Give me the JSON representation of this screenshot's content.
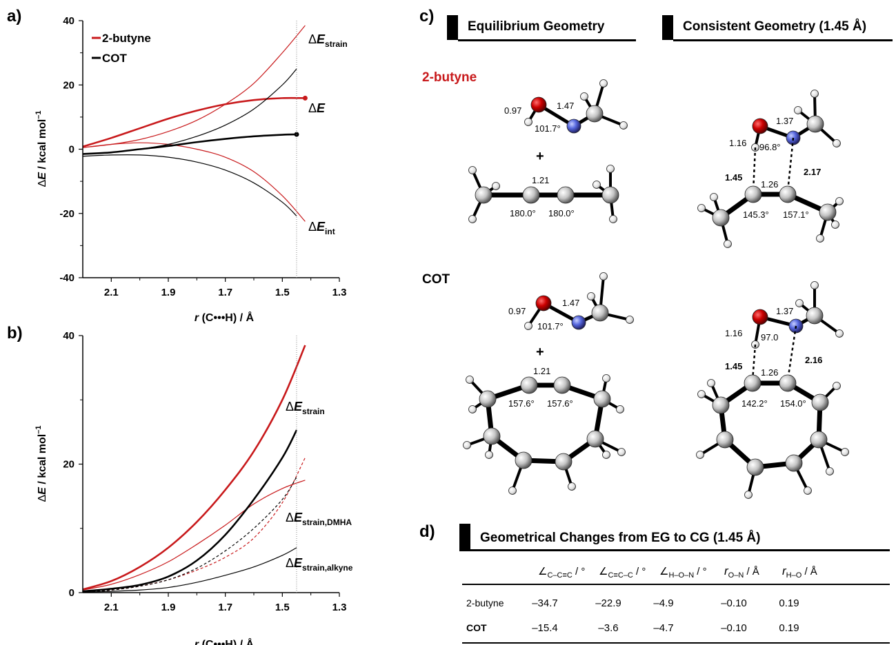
{
  "panels": {
    "a": "a)",
    "b": "b)",
    "c": "c)",
    "d": "d)"
  },
  "colors": {
    "butyne": "#c8191b",
    "cot": "#000000",
    "oxygen": "#cc0000",
    "nitrogen": "#5566dd",
    "carbon": "#b5b5b5"
  },
  "chart_data": [
    {
      "type": "line",
      "xlabel_italic": "r",
      "xlabel_rest": " (C•••H) / Å",
      "ylabel_italic": "E",
      "ylabel_prefix": "Δ",
      "ylabel_rest": " / kcal mol",
      "ylabel_sup": "–1",
      "xlim": [
        2.2,
        1.3
      ],
      "ylim": [
        -40,
        40
      ],
      "xticks": [
        "2.1",
        "1.9",
        "1.7",
        "1.5",
        "1.3"
      ],
      "xtick_values": [
        2.1,
        1.9,
        1.7,
        1.5,
        1.3
      ],
      "yticks": [
        "-40",
        "-20",
        "0",
        "20",
        "40"
      ],
      "ytick_values": [
        -40,
        -20,
        0,
        20,
        40
      ],
      "vline": 1.45,
      "legend": [
        {
          "name": "2-butyne",
          "color": "#c8191b"
        },
        {
          "name": "COT",
          "color": "#000000"
        }
      ],
      "annotations": [
        {
          "delta": "Δ",
          "main": "E",
          "sub": "strain"
        },
        {
          "delta": "Δ",
          "main": "E",
          "sub": ""
        },
        {
          "delta": "Δ",
          "main": "E",
          "sub": "int"
        }
      ],
      "series": [
        {
          "name": "2-butyne",
          "component": "strain",
          "color": "#c8191b",
          "width": 1.2,
          "x": [
            2.2,
            2.1,
            2.0,
            1.9,
            1.8,
            1.7,
            1.6,
            1.5,
            1.42
          ],
          "y": [
            0.5,
            1.5,
            3.0,
            5.5,
            9.0,
            14.0,
            20.5,
            30.0,
            38.5
          ]
        },
        {
          "name": "2-butyne",
          "component": "total",
          "color": "#c8191b",
          "width": 2.6,
          "x": [
            2.2,
            2.1,
            2.0,
            1.9,
            1.8,
            1.7,
            1.6,
            1.5,
            1.42
          ],
          "y": [
            0.8,
            3.5,
            6.5,
            9.5,
            12.0,
            14.0,
            15.3,
            15.9,
            15.9
          ]
        },
        {
          "name": "2-butyne",
          "component": "int",
          "color": "#c8191b",
          "width": 1.2,
          "x": [
            2.2,
            2.1,
            2.0,
            1.9,
            1.8,
            1.7,
            1.6,
            1.5,
            1.42
          ],
          "y": [
            0.5,
            1.5,
            2.0,
            1.5,
            0.0,
            -2.5,
            -7.0,
            -14.5,
            -22.5
          ]
        },
        {
          "name": "COT",
          "component": "strain",
          "color": "#000000",
          "width": 1.2,
          "x": [
            2.2,
            2.1,
            2.0,
            1.9,
            1.8,
            1.7,
            1.6,
            1.5,
            1.45
          ],
          "y": [
            -1.5,
            -1.0,
            0.0,
            1.5,
            4.0,
            7.5,
            12.5,
            20.0,
            25.0
          ]
        },
        {
          "name": "COT",
          "component": "total",
          "color": "#000000",
          "width": 2.6,
          "x": [
            2.2,
            2.1,
            2.0,
            1.9,
            1.8,
            1.7,
            1.6,
            1.5,
            1.45
          ],
          "y": [
            -1.5,
            -1.0,
            0.0,
            1.0,
            2.2,
            3.2,
            4.0,
            4.5,
            4.6
          ]
        },
        {
          "name": "COT",
          "component": "int",
          "color": "#000000",
          "width": 1.2,
          "x": [
            2.2,
            2.1,
            2.0,
            1.9,
            1.8,
            1.7,
            1.6,
            1.5,
            1.45
          ],
          "y": [
            -2.2,
            -1.8,
            -1.8,
            -2.5,
            -4.0,
            -6.5,
            -10.5,
            -16.5,
            -20.8
          ]
        }
      ]
    },
    {
      "type": "line",
      "xlabel_italic": "r",
      "xlabel_rest": " (C•••H) / Å",
      "ylabel_italic": "E",
      "ylabel_prefix": "Δ",
      "ylabel_rest": " / kcal mol",
      "ylabel_sup": "–1",
      "xlim": [
        2.2,
        1.3
      ],
      "ylim": [
        0,
        40
      ],
      "xticks": [
        "2.1",
        "1.9",
        "1.7",
        "1.5",
        "1.3"
      ],
      "xtick_values": [
        2.1,
        1.9,
        1.7,
        1.5,
        1.3
      ],
      "yticks": [
        "0",
        "20",
        "40"
      ],
      "ytick_values": [
        0,
        20,
        40
      ],
      "vline": 1.45,
      "annotations": [
        {
          "delta": "Δ",
          "main": "E",
          "sub": "strain"
        },
        {
          "delta": "Δ",
          "main": "E",
          "sub": "strain,DMHA"
        },
        {
          "delta": "Δ",
          "main": "E",
          "sub": "strain,alkyne"
        }
      ],
      "series": [
        {
          "name": "2-butyne",
          "component": "strain",
          "color": "#c8191b",
          "width": 2.6,
          "dash": "",
          "x": [
            2.2,
            2.1,
            2.0,
            1.9,
            1.8,
            1.7,
            1.6,
            1.5,
            1.42
          ],
          "y": [
            0.5,
            1.8,
            4.0,
            7.0,
            11.0,
            16.0,
            22.0,
            30.0,
            38.5
          ]
        },
        {
          "name": "2-butyne",
          "component": "strain,DMHA",
          "color": "#c8191b",
          "width": 1.2,
          "dash": "",
          "x": [
            2.2,
            2.1,
            2.0,
            1.9,
            1.8,
            1.7,
            1.6,
            1.5,
            1.42
          ],
          "y": [
            0.4,
            1.3,
            2.8,
            4.8,
            7.5,
            10.5,
            13.8,
            16.2,
            17.5
          ]
        },
        {
          "name": "2-butyne",
          "component": "strain,alkyne",
          "color": "#c8191b",
          "width": 1.2,
          "dash": "4,3",
          "x": [
            2.2,
            2.1,
            2.0,
            1.9,
            1.8,
            1.7,
            1.6,
            1.5,
            1.42
          ],
          "y": [
            0.1,
            0.4,
            1.0,
            2.0,
            3.5,
            5.5,
            8.5,
            14.0,
            21.0
          ]
        },
        {
          "name": "COT",
          "component": "strain",
          "color": "#000000",
          "width": 2.6,
          "dash": "",
          "x": [
            2.2,
            2.1,
            2.0,
            1.9,
            1.8,
            1.7,
            1.6,
            1.5,
            1.45
          ],
          "y": [
            0.2,
            0.6,
            1.2,
            2.5,
            5.0,
            9.0,
            14.5,
            21.0,
            25.3
          ]
        },
        {
          "name": "COT",
          "component": "strain,DMHA",
          "color": "#000000",
          "width": 1.2,
          "dash": "4,3",
          "x": [
            2.2,
            2.1,
            2.0,
            1.9,
            1.8,
            1.7,
            1.6,
            1.5,
            1.45
          ],
          "y": [
            0.1,
            0.4,
            1.0,
            2.0,
            3.8,
            6.5,
            10.0,
            14.5,
            18.0
          ]
        },
        {
          "name": "COT",
          "component": "strain,alkyne",
          "color": "#000000",
          "width": 1.2,
          "dash": "",
          "x": [
            2.2,
            2.1,
            2.0,
            1.9,
            1.8,
            1.7,
            1.6,
            1.5,
            1.45
          ],
          "y": [
            0.1,
            0.2,
            0.4,
            0.8,
            1.6,
            2.7,
            4.0,
            5.8,
            7.0
          ]
        }
      ]
    }
  ],
  "panel_c": {
    "header_left": "Equilibrium Geometry",
    "header_right": "Consistent Geometry (1.45 Å)",
    "label_butyne": "2-butyne",
    "label_cot": "COT",
    "plus": "+",
    "eg_butyne": {
      "oh": "0.97",
      "on": "1.47",
      "angle_hon": "101.7°",
      "cc": "1.21",
      "angle1": "180.0°",
      "angle2": "180.0°"
    },
    "cg_butyne": {
      "oh": "1.16",
      "on": "1.37",
      "angle_hon": "96.8°",
      "hc": "1.45",
      "nc": "2.17",
      "cc": "1.26",
      "angle1": "145.3°",
      "angle2": "157.1°"
    },
    "eg_cot": {
      "oh": "0.97",
      "on": "1.47",
      "angle_hon": "101.7°",
      "cc": "1.21",
      "angle1": "157.6°",
      "angle2": "157.6°"
    },
    "cg_cot": {
      "oh": "1.16",
      "on": "1.37",
      "angle_hon": "97.0",
      "hc": "1.45",
      "nc": "2.16",
      "cc": "1.26",
      "angle1": "142.2°",
      "angle2": "154.0°"
    }
  },
  "panel_d": {
    "title": "Geometrical Changes from EG to CG (1.45 Å)",
    "columns": [
      {
        "sym": "∠",
        "sub": "C–C≡C",
        "unit": " / °"
      },
      {
        "sym": "∠",
        "sub": "C≡C–C",
        "unit": " / °"
      },
      {
        "sym": "∠",
        "sub": "H–O–N",
        "unit": " / °"
      },
      {
        "sym": "r",
        "sub": "O–N",
        "unit": " / Å"
      },
      {
        "sym": "r",
        "sub": "H–O",
        "unit": " / Å"
      }
    ],
    "rows": [
      {
        "label": "2-butyne",
        "values": [
          "–34.7",
          "–22.9",
          "–4.9",
          "–0.10",
          "0.19"
        ]
      },
      {
        "label": "COT",
        "values": [
          "–15.4",
          "–3.6",
          "–4.7",
          "–0.10",
          "0.19"
        ]
      }
    ]
  }
}
